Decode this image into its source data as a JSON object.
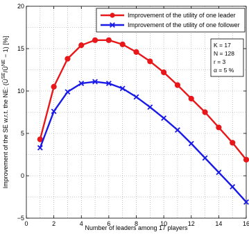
{
  "chart_data": {
    "type": "line",
    "title": "",
    "xlabel": "Number of leaders among 17 players",
    "ylabel": "Improvement of the SE w.r.t. the NE: (Ū^SE/Ū^NE − 1) [%]",
    "xlim": [
      0,
      16
    ],
    "ylim": [
      -5,
      20
    ],
    "xticks": [
      0,
      2,
      4,
      6,
      8,
      10,
      12,
      14,
      16
    ],
    "yticks": [
      -5,
      0,
      5,
      10,
      15,
      20
    ],
    "x_tick_labels": [
      "0",
      "2",
      "4",
      "6",
      "8",
      "10",
      "12",
      "14",
      "16"
    ],
    "y_tick_labels": [
      "−5",
      "0",
      "5",
      "10",
      "15",
      "20"
    ],
    "grid": true,
    "legend_position": "top-right",
    "x": [
      1,
      2,
      3,
      4,
      5,
      6,
      7,
      8,
      9,
      10,
      11,
      12,
      13,
      14,
      15,
      16
    ],
    "series": [
      {
        "name": "Improvement of the utility of one leader",
        "color": "#e8171a",
        "marker": "circle",
        "values": [
          4.3,
          10.5,
          13.8,
          15.4,
          16.0,
          16.0,
          15.5,
          14.6,
          13.5,
          12.2,
          10.7,
          9.1,
          7.5,
          5.7,
          3.9,
          1.9
        ]
      },
      {
        "name": "Improvement of the utility of one follower",
        "color": "#1a1ae8",
        "marker": "x",
        "values": [
          3.3,
          7.6,
          9.9,
          10.9,
          11.1,
          10.9,
          10.3,
          9.3,
          8.1,
          6.8,
          5.4,
          3.8,
          2.1,
          0.4,
          -1.3,
          -3.1
        ]
      }
    ],
    "annotations": [
      "K = 17",
      "N = 128",
      "r = 3",
      "α = 5 %"
    ]
  }
}
